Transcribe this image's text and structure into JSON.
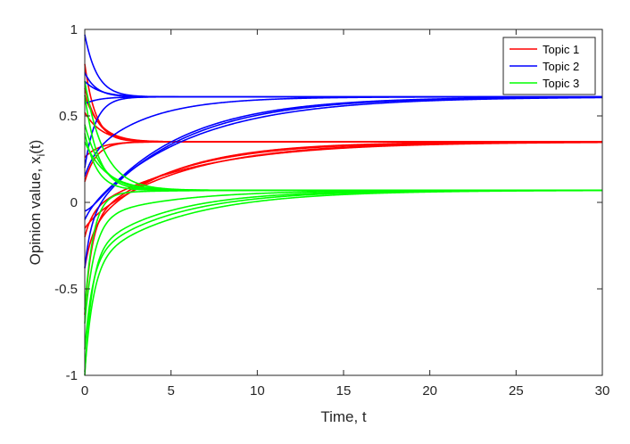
{
  "chart_data": {
    "type": "line",
    "title": "",
    "xlabel": "Time, t",
    "ylabel": "Opinion value, x",
    "ylabel_subscript": "i",
    "ylabel_suffix": "(t)",
    "xlim": [
      0,
      30
    ],
    "ylim": [
      -1,
      1
    ],
    "xticks": [
      0,
      5,
      10,
      15,
      20,
      25,
      30
    ],
    "xtick_labels": [
      "0",
      "5",
      "10",
      "15",
      "20",
      "25",
      "30"
    ],
    "yticks": [
      -1,
      -0.5,
      0,
      0.5,
      1
    ],
    "ytick_labels": [
      "-1",
      "-0.5",
      "0",
      "0.5",
      "1"
    ],
    "grid": false,
    "legend_position": "top-right",
    "series": [
      {
        "name": "Topic 1",
        "color": "#ff0000",
        "steady_state": 0.35,
        "curves": [
          {
            "start": 0.8,
            "fast": 1.6,
            "slow": 0.0
          },
          {
            "start": 0.66,
            "fast": 1.3,
            "slow": 0.0
          },
          {
            "start": 0.62,
            "fast": 1.1,
            "slow": 0.0
          },
          {
            "start": 0.52,
            "fast": 1.0,
            "slow": 0.0
          },
          {
            "start": 0.26,
            "fast": 1.2,
            "slow": 0.0
          },
          {
            "start": 0.12,
            "fast": 1.5,
            "slow": 0.0
          },
          {
            "start": -0.15,
            "fast": 2.0,
            "dip": -0.12,
            "slow": 0.18
          },
          {
            "start": -0.2,
            "fast": 2.2,
            "dip": -0.05,
            "slow": 0.16
          },
          {
            "start": -0.38,
            "fast": 2.4,
            "dip": -0.17,
            "slow": 0.22
          },
          {
            "start": -0.65,
            "fast": 2.6,
            "dip": -0.12,
            "slow": 0.2
          }
        ]
      },
      {
        "name": "Topic 2",
        "color": "#0000ff",
        "steady_state": 0.61,
        "curves": [
          {
            "start": 0.97,
            "fast": 1.4,
            "slow": 0.0
          },
          {
            "start": 0.75,
            "fast": 1.5,
            "slow": 0.0
          },
          {
            "start": 0.7,
            "fast": 1.1,
            "slow": 0.0
          },
          {
            "start": 0.57,
            "fast": 1.2,
            "slow": 0.0
          },
          {
            "start": 0.2,
            "fast": 1.6,
            "slow": 0.0
          },
          {
            "start": 0.15,
            "fast": 2.0,
            "dip": 0.25,
            "slow": 0.3
          },
          {
            "start": -0.05,
            "fast": 2.2,
            "dip": -0.1,
            "slow": 0.2
          },
          {
            "start": -0.1,
            "fast": 2.5,
            "dip": -0.06,
            "slow": 0.17
          },
          {
            "start": -0.38,
            "fast": 2.8,
            "dip": -0.1,
            "slow": 0.19
          }
        ]
      },
      {
        "name": "Topic 3",
        "color": "#00ff00",
        "steady_state": 0.07,
        "curves": [
          {
            "start": 0.7,
            "fast": 0.9,
            "slow": 0.0
          },
          {
            "start": 0.62,
            "fast": 1.3,
            "slow": 0.0
          },
          {
            "start": 0.45,
            "fast": 1.0,
            "slow": 0.0
          },
          {
            "start": 0.4,
            "fast": 1.4,
            "slow": 0.0
          },
          {
            "start": 0.35,
            "fast": 0.8,
            "slow": 0.0
          },
          {
            "start": -0.62,
            "fast": 2.0,
            "dip": 0.05,
            "slow": 0.35
          },
          {
            "start": -0.7,
            "fast": 1.8,
            "dip": -0.1,
            "slow": 0.22
          },
          {
            "start": -0.85,
            "fast": 2.2,
            "dip": -0.33,
            "slow": 0.21
          },
          {
            "start": -0.98,
            "fast": 2.0,
            "dip": -0.36,
            "slow": 0.19
          },
          {
            "start": -1.0,
            "fast": 2.4,
            "dip": -0.3,
            "slow": 0.23
          }
        ]
      }
    ]
  }
}
